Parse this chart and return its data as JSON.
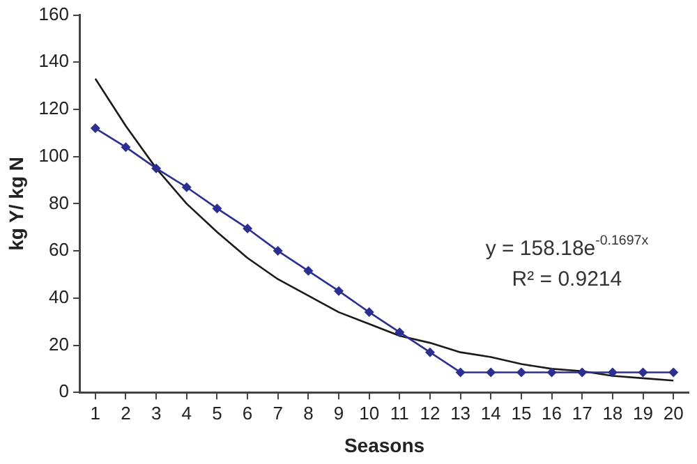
{
  "chart_data": {
    "type": "line",
    "xlabel": "Seasons",
    "ylabel": "kg Y/ kg N",
    "x": [
      1,
      2,
      3,
      4,
      5,
      6,
      7,
      8,
      9,
      10,
      11,
      12,
      13,
      14,
      15,
      16,
      17,
      18,
      19,
      20
    ],
    "xlim": [
      0.5,
      20.5
    ],
    "xticks": [
      1,
      2,
      3,
      4,
      5,
      6,
      7,
      8,
      9,
      10,
      11,
      12,
      13,
      14,
      15,
      16,
      17,
      18,
      19,
      20
    ],
    "ylim": [
      0,
      160
    ],
    "yticks": [
      0,
      20,
      40,
      60,
      80,
      100,
      120,
      140,
      160
    ],
    "grid": false,
    "legend": false,
    "series": [
      {
        "color": "#2b2f8f",
        "marker": "diamond",
        "values": [
          112,
          104,
          95,
          87,
          78,
          69.5,
          60,
          51.5,
          43,
          34,
          25.5,
          17,
          8.5,
          8.5,
          8.5,
          8.5,
          8.5,
          8.5,
          8.5,
          8.5
        ]
      },
      {
        "type": "line",
        "color": "#1a1a1a",
        "marker": "none",
        "x": [
          1,
          2,
          3,
          4,
          5,
          6,
          7,
          8,
          9,
          10,
          11,
          12,
          13,
          14,
          15,
          16,
          17,
          18,
          19,
          20
        ],
        "values": [
          133,
          113,
          95,
          80,
          68,
          57,
          48,
          41,
          34,
          29,
          24,
          21,
          17,
          15,
          12,
          10,
          9,
          7,
          6,
          5
        ]
      }
    ],
    "annotations": [
      "y = 158.18e$^{-0.1697x}$",
      "R² = 0.9214"
    ]
  }
}
